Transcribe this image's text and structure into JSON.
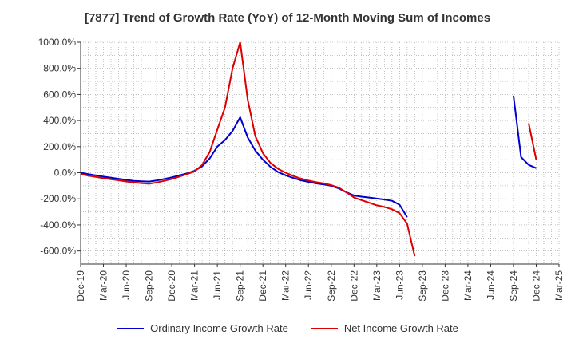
{
  "chart_data": {
    "type": "line",
    "title": "[7877]  Trend of Growth Rate (YoY) of 12-Month Moving Sum of Incomes",
    "xlabel": "",
    "ylabel": "",
    "x_start": "Dec-19",
    "x_end": "Mar-25",
    "x_tick_labels": [
      "Dec-19",
      "Mar-20",
      "Jun-20",
      "Sep-20",
      "Dec-20",
      "Mar-21",
      "Jun-21",
      "Sep-21",
      "Dec-21",
      "Mar-22",
      "Jun-22",
      "Sep-22",
      "Dec-22",
      "Mar-23",
      "Jun-23",
      "Sep-23",
      "Dec-23",
      "Mar-24",
      "Jun-24",
      "Sep-24",
      "Dec-24",
      "Mar-25"
    ],
    "y_ticks": [
      -600,
      -400,
      -200,
      0,
      200,
      400,
      600,
      800,
      1000
    ],
    "y_tick_labels": [
      "-600.0%",
      "-400.0%",
      "-200.0%",
      "0.0%",
      "200.0%",
      "400.0%",
      "600.0%",
      "800.0%",
      "1000.0%"
    ],
    "ylim": [
      -700,
      1000
    ],
    "grid": true,
    "legend_position": "bottom",
    "series": [
      {
        "name": "Ordinary Income Growth Rate",
        "color": "#0000cc",
        "points": [
          [
            "Dec-19",
            0
          ],
          [
            "Jan-20",
            -10
          ],
          [
            "Feb-20",
            -20
          ],
          [
            "Mar-20",
            -30
          ],
          [
            "Apr-20",
            -38
          ],
          [
            "May-20",
            -46
          ],
          [
            "Jun-20",
            -55
          ],
          [
            "Jul-20",
            -62
          ],
          [
            "Aug-20",
            -65
          ],
          [
            "Sep-20",
            -68
          ],
          [
            "Oct-20",
            -60
          ],
          [
            "Nov-20",
            -48
          ],
          [
            "Dec-20",
            -35
          ],
          [
            "Jan-21",
            -20
          ],
          [
            "Feb-21",
            -5
          ],
          [
            "Mar-21",
            15
          ],
          [
            "Apr-21",
            50
          ],
          [
            "May-21",
            110
          ],
          [
            "Jun-21",
            200
          ],
          [
            "Jul-21",
            250
          ],
          [
            "Aug-21",
            320
          ],
          [
            "Sep-21",
            425
          ],
          [
            "Oct-21",
            270
          ],
          [
            "Nov-21",
            170
          ],
          [
            "Dec-21",
            100
          ],
          [
            "Jan-22",
            45
          ],
          [
            "Feb-22",
            5
          ],
          [
            "Mar-22",
            -20
          ],
          [
            "Apr-22",
            -40
          ],
          [
            "May-22",
            -58
          ],
          [
            "Jun-22",
            -70
          ],
          [
            "Jul-22",
            -82
          ],
          [
            "Aug-22",
            -90
          ],
          [
            "Sep-22",
            -100
          ],
          [
            "Oct-22",
            -120
          ],
          [
            "Nov-22",
            -150
          ],
          [
            "Dec-22",
            -175
          ],
          [
            "Jan-23",
            -183
          ],
          [
            "Feb-23",
            -190
          ],
          [
            "Mar-23",
            -198
          ],
          [
            "Apr-23",
            -205
          ],
          [
            "May-23",
            -215
          ],
          [
            "Jun-23",
            -245
          ],
          [
            "Jul-23",
            -340
          ],
          null,
          [
            "Sep-24",
            590
          ],
          [
            "Oct-24",
            120
          ],
          [
            "Nov-24",
            60
          ],
          [
            "Dec-24",
            35
          ]
        ]
      },
      {
        "name": "Net Income Growth Rate",
        "color": "#dd0000",
        "points": [
          [
            "Dec-19",
            -10
          ],
          [
            "Jan-20",
            -22
          ],
          [
            "Feb-20",
            -32
          ],
          [
            "Mar-20",
            -42
          ],
          [
            "Apr-20",
            -50
          ],
          [
            "May-20",
            -58
          ],
          [
            "Jun-20",
            -67
          ],
          [
            "Jul-20",
            -75
          ],
          [
            "Aug-20",
            -80
          ],
          [
            "Sep-20",
            -85
          ],
          [
            "Oct-20",
            -75
          ],
          [
            "Nov-20",
            -62
          ],
          [
            "Dec-20",
            -48
          ],
          [
            "Jan-21",
            -30
          ],
          [
            "Feb-21",
            -10
          ],
          [
            "Mar-21",
            10
          ],
          [
            "Apr-21",
            60
          ],
          [
            "May-21",
            160
          ],
          [
            "Jun-21",
            330
          ],
          [
            "Jul-21",
            500
          ],
          [
            "Aug-21",
            800
          ],
          [
            "Sep-21",
            1000
          ],
          null,
          [
            "Sep-21",
            1000
          ],
          [
            "Oct-21",
            560
          ],
          [
            "Nov-21",
            280
          ],
          [
            "Dec-21",
            150
          ],
          [
            "Jan-22",
            75
          ],
          [
            "Feb-22",
            30
          ],
          [
            "Mar-22",
            0
          ],
          [
            "Apr-22",
            -25
          ],
          [
            "May-22",
            -45
          ],
          [
            "Jun-22",
            -60
          ],
          [
            "Jul-22",
            -72
          ],
          [
            "Aug-22",
            -82
          ],
          [
            "Sep-22",
            -95
          ],
          [
            "Oct-22",
            -115
          ],
          [
            "Nov-22",
            -150
          ],
          [
            "Dec-22",
            -190
          ],
          [
            "Jan-23",
            -210
          ],
          [
            "Feb-23",
            -230
          ],
          [
            "Mar-23",
            -250
          ],
          [
            "Apr-23",
            -262
          ],
          [
            "May-23",
            -280
          ],
          [
            "Jun-23",
            -310
          ],
          [
            "Jul-23",
            -390
          ],
          [
            "Aug-23",
            -640
          ],
          null,
          [
            "Nov-24",
            380
          ],
          [
            "Dec-24",
            100
          ]
        ]
      }
    ]
  }
}
